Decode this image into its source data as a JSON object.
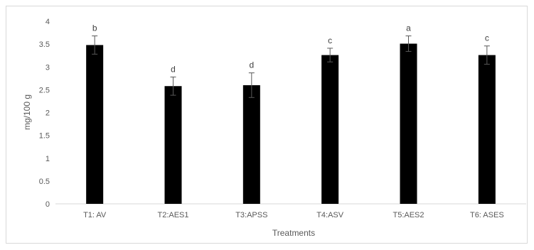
{
  "chart_data": {
    "type": "bar",
    "categories": [
      "T1: AV",
      "T2:AES1",
      "T3:APSS",
      "T4:ASV",
      "T5:AES2",
      "T6: ASES"
    ],
    "values": [
      3.48,
      2.58,
      2.6,
      3.26,
      3.51,
      3.26
    ],
    "errors": [
      0.2,
      0.2,
      0.27,
      0.15,
      0.17,
      0.2
    ],
    "data_labels": [
      "b",
      "d",
      "d",
      "c",
      "a",
      "c"
    ],
    "xlabel": "Treatments",
    "ylabel": "mg/100 g",
    "ylim": [
      0,
      4
    ],
    "yticks": [
      "0",
      "0.5",
      "1",
      "1.5",
      "2",
      "2.5",
      "3",
      "3.5",
      "4"
    ],
    "grid": false,
    "bar_color": "#000000"
  }
}
